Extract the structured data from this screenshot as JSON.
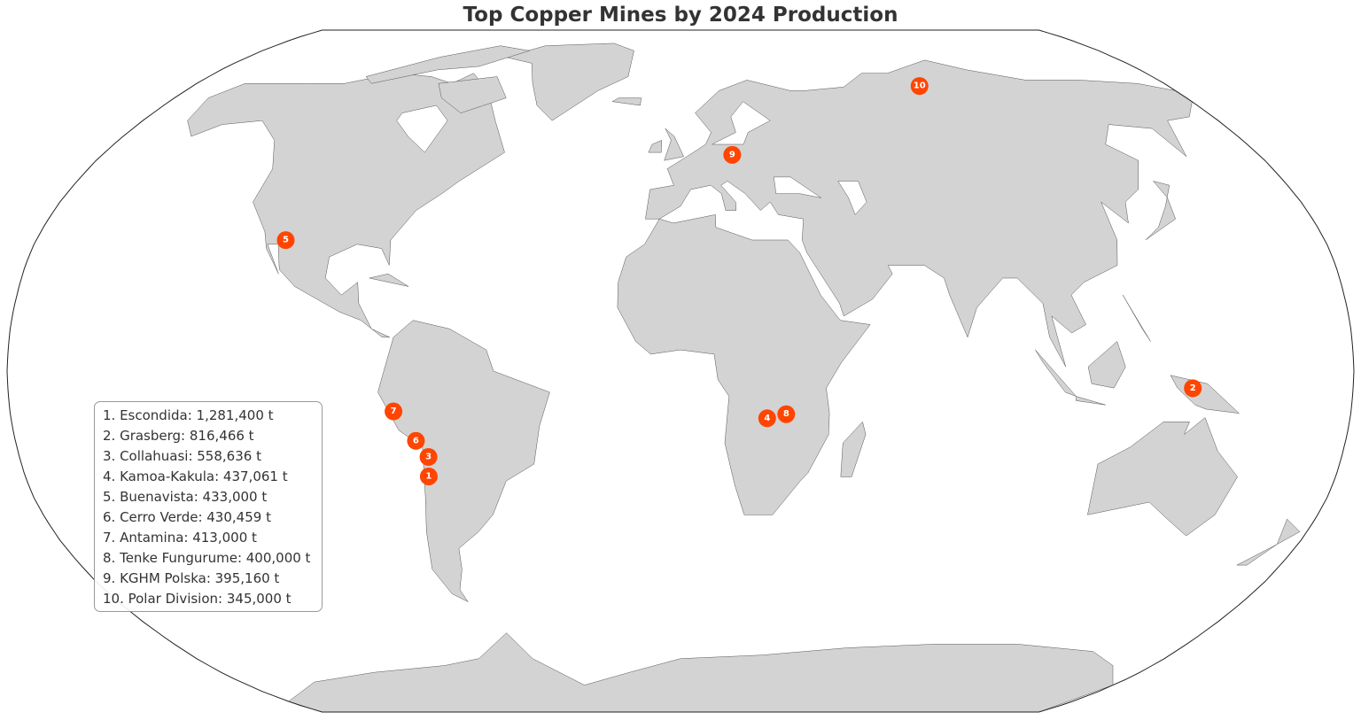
{
  "title": "Top Copper Mines by 2024 Production",
  "colors": {
    "land": "#d3d3d3",
    "border": "#555555",
    "marker": "#ff4500",
    "marker_text": "#ffffff",
    "ocean": "#ffffff"
  },
  "projection": "Robinson",
  "mines": [
    {
      "rank": "1",
      "name": "Escondida",
      "production_t": 1281400,
      "lon": -69.07,
      "lat": -24.27,
      "label": "1. Escondida: 1,281,400 t"
    },
    {
      "rank": "2",
      "name": "Grasberg",
      "production_t": 816466,
      "lon": 137.1,
      "lat": -4.06,
      "label": "2. Grasberg: 816,466 t"
    },
    {
      "rank": "3",
      "name": "Collahuasi",
      "production_t": 558636,
      "lon": -68.7,
      "lat": -20.97,
      "label": "3. Collahuasi: 558,636 t"
    },
    {
      "rank": "4",
      "name": "Kamoa-Kakula",
      "production_t": 437061,
      "lon": 25.4,
      "lat": -10.77,
      "label": "4. Kamoa-Kakula: 437,061 t"
    },
    {
      "rank": "5",
      "name": "Buenavista",
      "production_t": 433000,
      "lon": -110.3,
      "lat": 30.97,
      "label": "5. Buenavista: 433,000 t"
    },
    {
      "rank": "6",
      "name": "Cerro Verde",
      "production_t": 430459,
      "lon": -71.6,
      "lat": -16.5,
      "label": "6. Cerro Verde: 430,459 t"
    },
    {
      "rank": "7",
      "name": "Antamina",
      "production_t": 413000,
      "lon": -77.05,
      "lat": -9.54,
      "label": "7. Antamina: 413,000 t"
    },
    {
      "rank": "8",
      "name": "Tenke Fungurume",
      "production_t": 400000,
      "lon": 26.3,
      "lat": -10.6,
      "label": "8. Tenke Fungurume: 400,000 t"
    },
    {
      "rank": "9",
      "name": "KGHM Polska",
      "production_t": 395160,
      "lon": 16.1,
      "lat": 51.4,
      "label": "9. KGHM Polska: 395,160 t"
    },
    {
      "rank": "10",
      "name": "Polar Division",
      "production_t": 345000,
      "lon": 88.2,
      "lat": 69.3,
      "label": "10. Polar Division: 345,000 t"
    }
  ]
}
